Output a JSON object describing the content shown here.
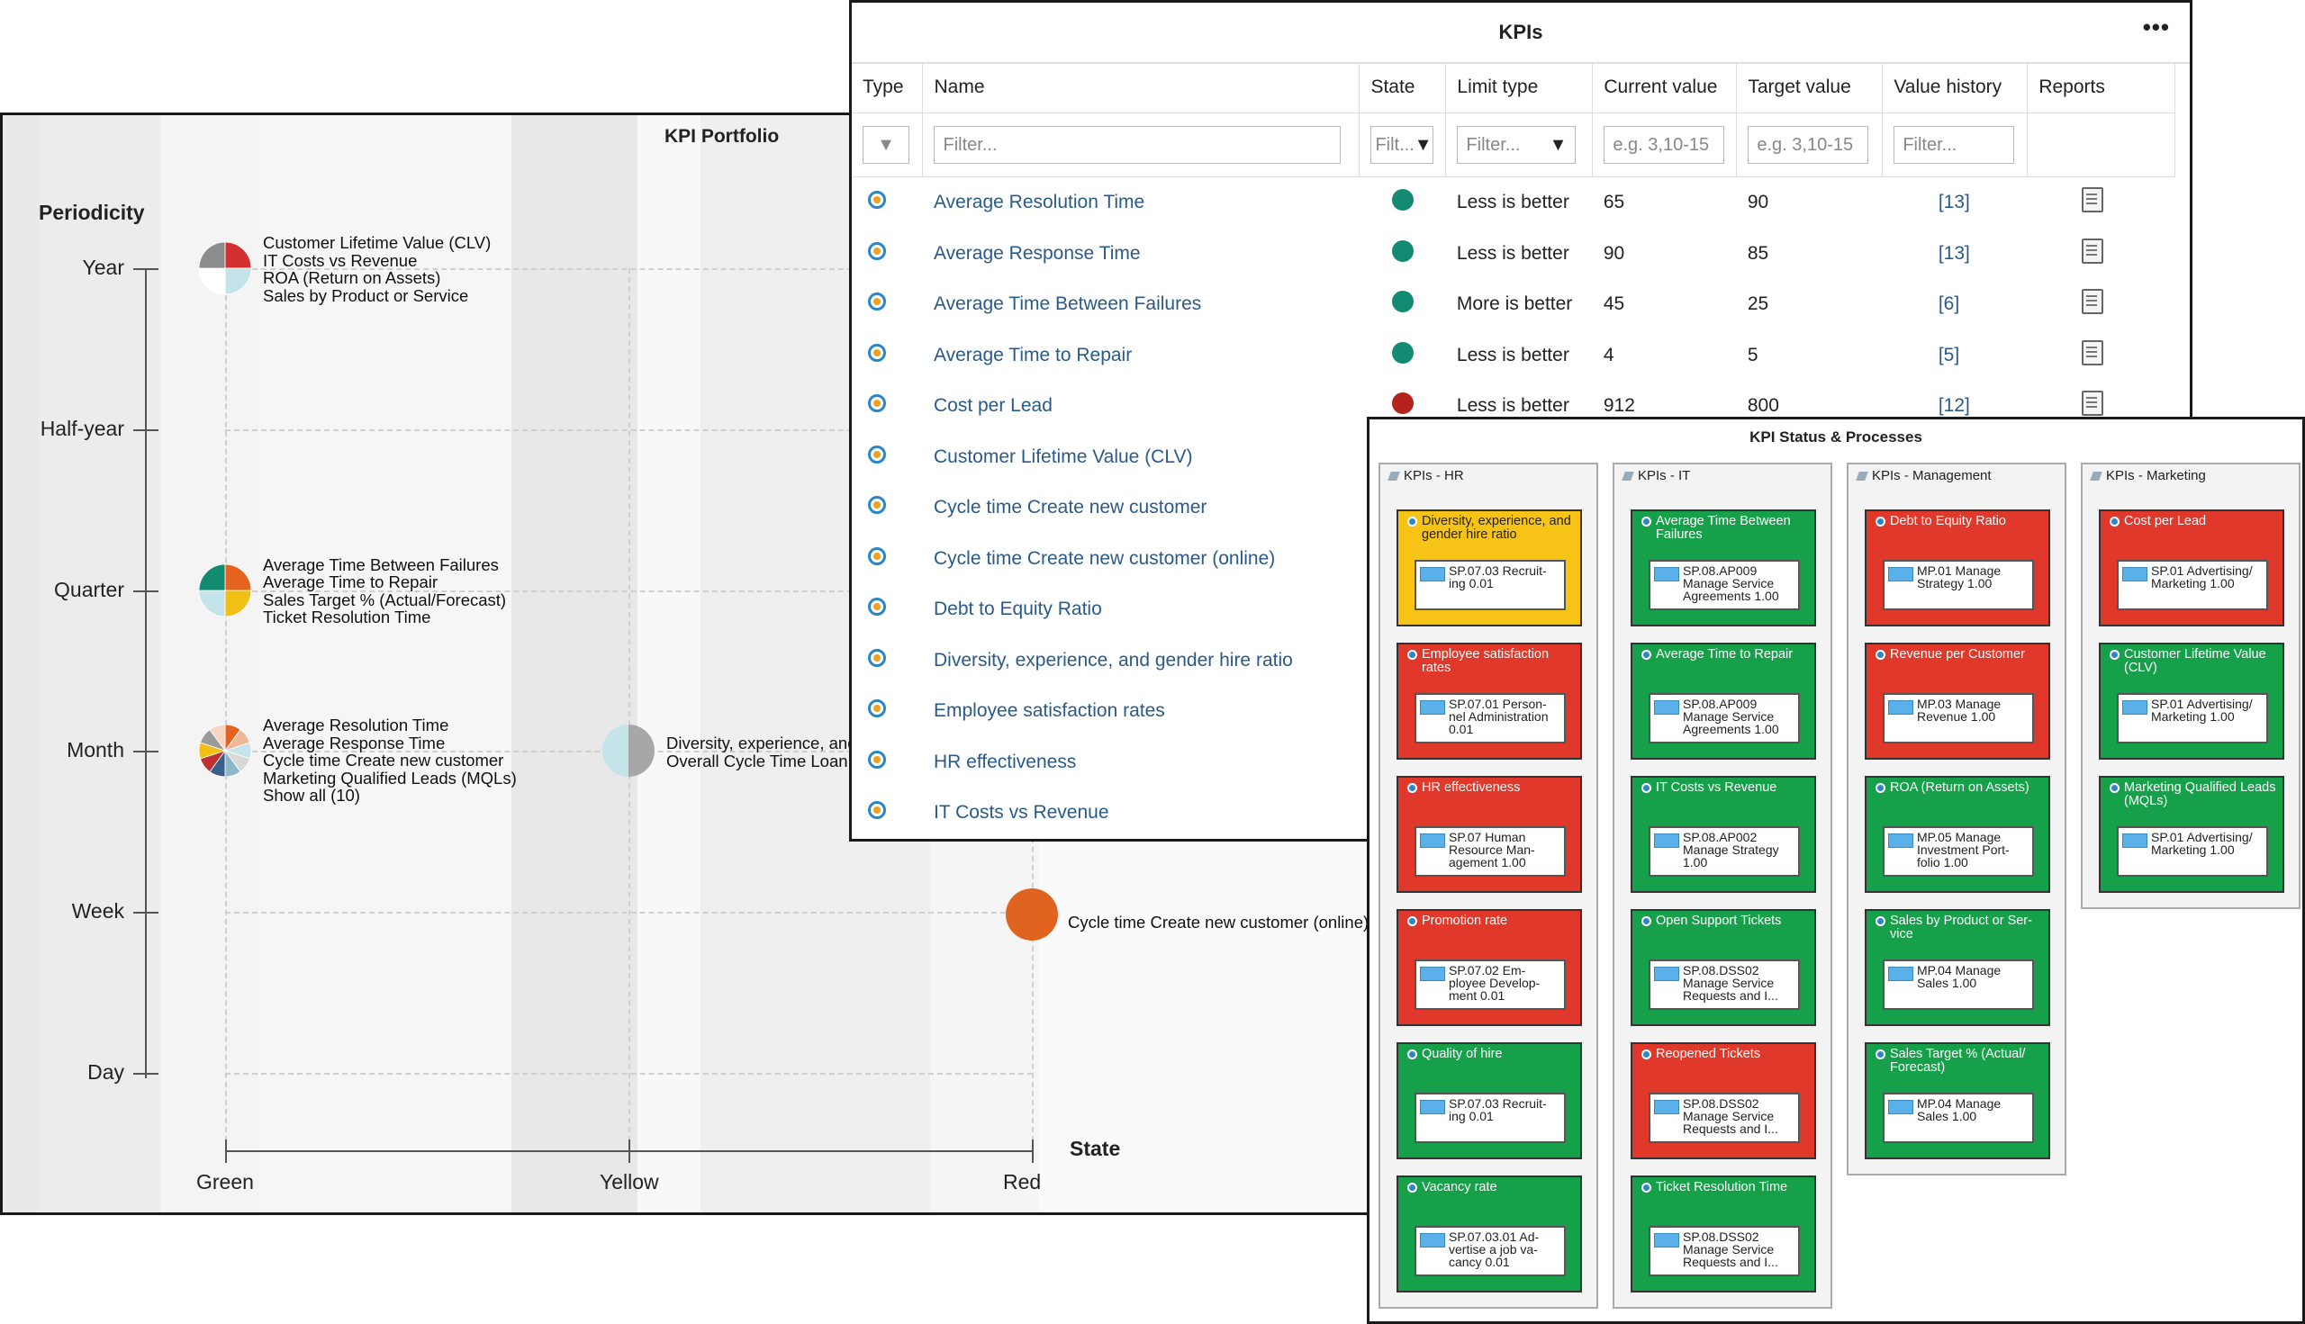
{
  "portfolio": {
    "title": "KPI Portfolio",
    "y_axis_title": "Periodicity",
    "x_axis_title": "State",
    "periods": [
      "Year",
      "Half-year",
      "Quarter",
      "Month",
      "Week",
      "Day"
    ],
    "states": [
      "Green",
      "Yellow",
      "Red"
    ],
    "bubbles": [
      {
        "period": "Year",
        "state": "Green",
        "kpis": [
          "Customer Lifetime Value (CLV)",
          "IT Costs vs Revenue",
          "ROA (Return on Assets)",
          "Sales by Product or Service"
        ]
      },
      {
        "period": "Quarter",
        "state": "Green",
        "kpis": [
          "Average Time Between Failures",
          "Average Time to Repair",
          "Sales Target % (Actual/Forecast)",
          "Ticket Resolution Time"
        ]
      },
      {
        "period": "Month",
        "state": "Green",
        "kpis": [
          "Average Resolution Time",
          "Average Response Time",
          "Cycle time Create new customer",
          "Marketing Qualified Leads (MQLs)",
          "Show all (10)"
        ]
      },
      {
        "period": "Month",
        "state": "Yellow",
        "kpis": [
          "Diversity, experience, and",
          "Overall Cycle Time Loan a"
        ]
      },
      {
        "period": "Week",
        "state": "Red",
        "kpis": [
          "Cycle time Create new customer (online)"
        ]
      }
    ],
    "colors": {
      "red_bubble": "#e0641f",
      "grey": "#a7a7a7",
      "light_blue": "#c5e4ea"
    }
  },
  "kpis": {
    "title": "KPIs",
    "menu": "•••",
    "columns": [
      "Type",
      "Name",
      "State",
      "Limit type",
      "Current value",
      "Target value",
      "Value history",
      "Reports"
    ],
    "filters": {
      "name": "Filter...",
      "state": "Filt...",
      "limit": "Filter...",
      "current": "e.g. 3,10-15",
      "target": "e.g. 3,10-15",
      "history": "Filter..."
    },
    "rows": [
      {
        "name": "Average Resolution Time",
        "state": "green",
        "limit": "Less is better",
        "current": "65",
        "target": "90",
        "history": "[13]",
        "report": true
      },
      {
        "name": "Average Response Time",
        "state": "green",
        "limit": "Less is better",
        "current": "90",
        "target": "85",
        "history": "[13]",
        "report": true
      },
      {
        "name": "Average Time Between Failures",
        "state": "green",
        "limit": "More is better",
        "current": "45",
        "target": "25",
        "history": "[6]",
        "report": true
      },
      {
        "name": "Average Time to Repair",
        "state": "green",
        "limit": "Less is better",
        "current": "4",
        "target": "5",
        "history": "[5]",
        "report": true
      },
      {
        "name": "Cost per Lead",
        "state": "red",
        "limit": "Less is better",
        "current": "912",
        "target": "800",
        "history": "[12]",
        "report": true
      },
      {
        "name": "Customer Lifetime Value (CLV)",
        "state": "",
        "limit": "",
        "current": "",
        "target": "",
        "history": "",
        "report": false
      },
      {
        "name": "Cycle time Create new customer",
        "state": "",
        "limit": "",
        "current": "",
        "target": "",
        "history": "",
        "report": false
      },
      {
        "name": "Cycle time Create new customer (online)",
        "state": "",
        "limit": "",
        "current": "",
        "target": "",
        "history": "",
        "report": false
      },
      {
        "name": "Debt to Equity Ratio",
        "state": "",
        "limit": "",
        "current": "",
        "target": "",
        "history": "",
        "report": false
      },
      {
        "name": "Diversity, experience, and gender hire ratio",
        "state": "",
        "limit": "",
        "current": "",
        "target": "",
        "history": "",
        "report": false
      },
      {
        "name": "Employee satisfaction rates",
        "state": "",
        "limit": "",
        "current": "",
        "target": "",
        "history": "",
        "report": false
      },
      {
        "name": "HR effectiveness",
        "state": "",
        "limit": "",
        "current": "",
        "target": "",
        "history": "",
        "report": false
      },
      {
        "name": "IT Costs vs Revenue",
        "state": "",
        "limit": "",
        "current": "",
        "target": "",
        "history": "",
        "report": false
      }
    ],
    "colors": {
      "green": "#138a72",
      "red": "#b5231c"
    }
  },
  "status": {
    "title": "KPI Status & Processes",
    "lanes": [
      {
        "title": "KPIs - HR",
        "cards": [
          {
            "title": "Diversity, experience, and gender hire ratio",
            "color": "yellow",
            "process": "SP.07.03 Recruit-ing 0.01"
          },
          {
            "title": "Employee satisfaction rates",
            "color": "red",
            "process": "SP.07.01 Person-nel Administration 0.01"
          },
          {
            "title": "HR effectiveness",
            "color": "red",
            "process": "SP.07 Human Resource Man-agement 1.00"
          },
          {
            "title": "Promotion rate",
            "color": "red",
            "process": "SP.07.02 Em-ployee Develop-ment 0.01"
          },
          {
            "title": "Quality of hire",
            "color": "green",
            "process": "SP.07.03 Recruit-ing 0.01"
          },
          {
            "title": "Vacancy rate",
            "color": "green",
            "process": "SP.07.03.01 Ad-vertise a job va-cancy 0.01"
          }
        ]
      },
      {
        "title": "KPIs - IT",
        "cards": [
          {
            "title": "Average Time Between Failures",
            "color": "green",
            "process": "SP.08.AP009 Manage Service Agreements 1.00"
          },
          {
            "title": "Average Time to Repair",
            "color": "green",
            "process": "SP.08.AP009 Manage Service Agreements 1.00"
          },
          {
            "title": "IT Costs vs Revenue",
            "color": "green",
            "process": "SP.08.AP002 Manage Strategy 1.00"
          },
          {
            "title": "Open Support Tickets",
            "color": "green",
            "process": "SP.08.DSS02 Manage Service Requests and I..."
          },
          {
            "title": "Reopened Tickets",
            "color": "red",
            "process": "SP.08.DSS02 Manage Service Requests and I..."
          },
          {
            "title": "Ticket Resolution Time",
            "color": "green",
            "process": "SP.08.DSS02 Manage Service Requests and I..."
          }
        ]
      },
      {
        "title": "KPIs - Management",
        "cards": [
          {
            "title": "Debt to Equity Ratio",
            "color": "red",
            "process": "MP.01 Manage Strategy 1.00"
          },
          {
            "title": "Revenue per Customer",
            "color": "red",
            "process": "MP.03 Manage Revenue 1.00"
          },
          {
            "title": "ROA (Return on Assets)",
            "color": "green",
            "process": "MP.05 Manage Investment Port-folio 1.00"
          },
          {
            "title": "Sales by Product or Ser-vice",
            "color": "green",
            "process": "MP.04 Manage Sales 1.00"
          },
          {
            "title": "Sales Target % (Actual/ Forecast)",
            "color": "green",
            "process": "MP.04 Manage Sales 1.00"
          }
        ]
      },
      {
        "title": "KPIs - Marketing",
        "cards": [
          {
            "title": "Cost per Lead",
            "color": "red",
            "process": "SP.01 Advertising/ Marketing 1.00"
          },
          {
            "title": "Customer Lifetime Value (CLV)",
            "color": "green",
            "process": "SP.01 Advertising/ Marketing 1.00"
          },
          {
            "title": "Marketing Qualified Leads (MQLs)",
            "color": "green",
            "process": "SP.01 Advertising/ Marketing 1.00"
          }
        ]
      }
    ]
  }
}
